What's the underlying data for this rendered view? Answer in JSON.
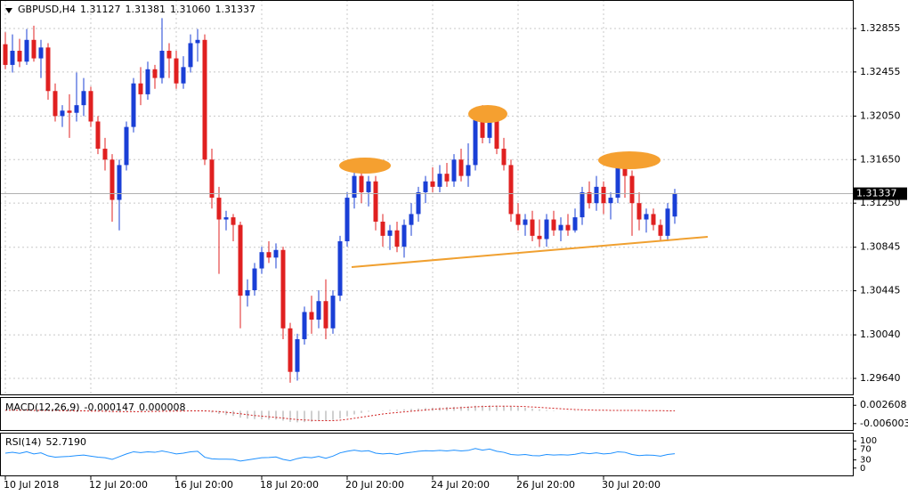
{
  "chart_data": {
    "type": "candlestick",
    "title": "GBPUSD,H4",
    "last_bar_labels": [
      "1.31127",
      "1.31381",
      "1.31060",
      "1.31337"
    ],
    "open": [
      1.3271,
      1.3252,
      1.3265,
      1.3255,
      1.3275,
      1.3258,
      1.3268,
      1.3228,
      1.3205,
      1.321,
      1.3208,
      1.3215,
      1.3228,
      1.32,
      1.3175,
      1.3165,
      1.3128,
      1.316,
      1.3195,
      1.3235,
      1.3225,
      1.3248,
      1.324,
      1.3265,
      1.3258,
      1.3235,
      1.325,
      1.3272,
      1.3275,
      1.3165,
      1.313,
      1.311,
      1.3112,
      1.3105,
      1.304,
      1.3045,
      1.3065,
      1.308,
      1.3075,
      1.3082,
      1.301,
      1.297,
      1.3,
      1.3025,
      1.3018,
      1.3035,
      1.301,
      1.304,
      1.309,
      1.313,
      1.315,
      1.3135,
      1.3145,
      1.3108,
      1.3095,
      1.31,
      1.3085,
      1.3105,
      1.3115,
      1.3135,
      1.3145,
      1.314,
      1.3152,
      1.3145,
      1.3165,
      1.315,
      1.316,
      1.3205,
      1.3185,
      1.3205,
      1.3175,
      1.316,
      1.3115,
      1.3105,
      1.311,
      1.3095,
      1.3092,
      1.311,
      1.31,
      1.3105,
      1.31,
      1.3112,
      1.3135,
      1.3125,
      1.314,
      1.3125,
      1.313,
      1.3158,
      1.315,
      1.3125,
      1.311,
      1.3115,
      1.3105,
      1.3095,
      1.31127
    ],
    "high": [
      1.3282,
      1.328,
      1.3276,
      1.3285,
      1.3288,
      1.3275,
      1.3272,
      1.3235,
      1.3215,
      1.3225,
      1.3245,
      1.324,
      1.3232,
      1.3205,
      1.3185,
      1.317,
      1.3165,
      1.32,
      1.324,
      1.325,
      1.3255,
      1.3252,
      1.3295,
      1.3272,
      1.3265,
      1.326,
      1.328,
      1.3285,
      1.328,
      1.3175,
      1.314,
      1.3118,
      1.3115,
      1.3108,
      1.3055,
      1.307,
      1.3085,
      1.309,
      1.3088,
      1.3085,
      1.3015,
      1.3005,
      1.303,
      1.304,
      1.3045,
      1.3055,
      1.3045,
      1.3095,
      1.3135,
      1.316,
      1.3158,
      1.315,
      1.315,
      1.3115,
      1.3105,
      1.3108,
      1.311,
      1.3125,
      1.314,
      1.315,
      1.3158,
      1.316,
      1.3162,
      1.317,
      1.3175,
      1.318,
      1.321,
      1.3215,
      1.3212,
      1.321,
      1.3185,
      1.3165,
      1.3125,
      1.3115,
      1.3118,
      1.311,
      1.3115,
      1.3118,
      1.3112,
      1.3115,
      1.312,
      1.314,
      1.3145,
      1.315,
      1.3145,
      1.3135,
      1.3168,
      1.3172,
      1.3155,
      1.3135,
      1.312,
      1.312,
      1.311,
      1.3125,
      1.31381
    ],
    "low": [
      1.3248,
      1.3245,
      1.325,
      1.3252,
      1.3255,
      1.324,
      1.322,
      1.32,
      1.3195,
      1.3185,
      1.32,
      1.3205,
      1.3195,
      1.317,
      1.3155,
      1.3108,
      1.31,
      1.3155,
      1.319,
      1.3215,
      1.322,
      1.323,
      1.3235,
      1.324,
      1.323,
      1.323,
      1.3245,
      1.3255,
      1.316,
      1.312,
      1.306,
      1.31,
      1.309,
      1.301,
      1.303,
      1.304,
      1.306,
      1.307,
      1.3065,
      1.3,
      1.296,
      1.2962,
      1.2995,
      1.3005,
      1.301,
      1.3,
      1.3005,
      1.3035,
      1.3085,
      1.312,
      1.3125,
      1.3122,
      1.31,
      1.3085,
      1.3082,
      1.308,
      1.3075,
      1.3095,
      1.3108,
      1.3125,
      1.3135,
      1.3135,
      1.314,
      1.314,
      1.3145,
      1.314,
      1.3155,
      1.318,
      1.318,
      1.317,
      1.3155,
      1.3108,
      1.31,
      1.3095,
      1.309,
      1.3085,
      1.3085,
      1.3095,
      1.309,
      1.3095,
      1.3098,
      1.3105,
      1.312,
      1.3118,
      1.3115,
      1.311,
      1.3125,
      1.313,
      1.3095,
      1.31,
      1.3098,
      1.31,
      1.309,
      1.309,
      1.3106
    ],
    "close": [
      1.3252,
      1.3265,
      1.3255,
      1.3275,
      1.3258,
      1.3268,
      1.3228,
      1.3205,
      1.321,
      1.3208,
      1.3215,
      1.3228,
      1.32,
      1.3175,
      1.3165,
      1.3128,
      1.316,
      1.3195,
      1.3235,
      1.3225,
      1.3248,
      1.324,
      1.3265,
      1.3258,
      1.3235,
      1.325,
      1.3272,
      1.3275,
      1.3165,
      1.313,
      1.311,
      1.3112,
      1.3105,
      1.304,
      1.3045,
      1.3065,
      1.308,
      1.3075,
      1.3082,
      1.301,
      1.297,
      1.3,
      1.3025,
      1.3018,
      1.3035,
      1.301,
      1.304,
      1.309,
      1.313,
      1.315,
      1.3135,
      1.3145,
      1.3108,
      1.3095,
      1.31,
      1.3085,
      1.3105,
      1.3115,
      1.3135,
      1.3145,
      1.314,
      1.3152,
      1.3145,
      1.3165,
      1.315,
      1.316,
      1.3205,
      1.3185,
      1.3205,
      1.3175,
      1.316,
      1.3115,
      1.3105,
      1.311,
      1.3095,
      1.3092,
      1.311,
      1.31,
      1.3105,
      1.31,
      1.3112,
      1.3135,
      1.3125,
      1.314,
      1.3125,
      1.313,
      1.3158,
      1.315,
      1.3125,
      1.311,
      1.3115,
      1.3105,
      1.3095,
      1.312,
      1.31337
    ],
    "up_color": "#1a3fd6",
    "down_color": "#e02020",
    "ylim": [
      1.29493,
      1.331
    ],
    "yticks": [
      1.32855,
      1.32455,
      {
        "value": 1.3205,
        "label": "1.32050"
      },
      {
        "value": 1.3165,
        "label": "1.31650"
      },
      {
        "value": 1.3125,
        "label": "1.31250"
      },
      1.30845,
      1.30445,
      {
        "value": 1.3004,
        "label": "1.30040"
      },
      {
        "value": 1.2964,
        "label": "1.29640"
      }
    ],
    "xticks": [
      {
        "value": 0,
        "label": "10 Jul 2018"
      },
      {
        "value": 12,
        "label": "12 Jul 20:00"
      },
      {
        "value": 24,
        "label": "16 Jul 20:00"
      },
      {
        "value": 36,
        "label": "18 Jul 20:00"
      },
      {
        "value": 48,
        "label": "20 Jul 20:00"
      },
      {
        "value": 60,
        "label": "24 Jul 20:00"
      },
      {
        "value": 72,
        "label": "26 Jul 20:00"
      },
      {
        "value": 84,
        "label": "30 Jul 20:00"
      }
    ],
    "grid": true,
    "macd": {
      "name": "MACD(12,26,9)",
      "values": [
        0.0003,
        0.0003,
        0.0002,
        0.0002,
        0.0002,
        0.0002,
        0.0001,
        0.0,
        -0.0001,
        -0.0002,
        -0.0002,
        -0.0002,
        -0.0003,
        -0.0004,
        -0.0005,
        -0.0007,
        -0.0007,
        -0.0005,
        -0.0003,
        -0.0002,
        -0.0001,
        -0.0001,
        0.0001,
        0.0001,
        0.0001,
        0.0001,
        0.0002,
        0.0002,
        -0.0003,
        -0.0008,
        -0.0015,
        -0.002,
        -0.0024,
        -0.0032,
        -0.0037,
        -0.0039,
        -0.004,
        -0.0041,
        -0.0041,
        -0.0046,
        -0.0052,
        -0.0054,
        -0.0053,
        -0.0051,
        -0.0048,
        -0.0047,
        -0.0043,
        -0.0036,
        -0.0026,
        -0.0017,
        -0.001,
        -0.0004,
        0.0,
        0.0002,
        0.0004,
        0.0005,
        0.0007,
        0.0009,
        0.0011,
        0.0013,
        0.0015,
        0.0016,
        0.0018,
        0.0019,
        0.002,
        0.0021,
        0.0024,
        0.0025,
        0.0026,
        0.0025,
        0.0024,
        0.0022,
        0.0018,
        0.0014,
        0.001,
        0.0007,
        0.0004,
        0.0002,
        0.0,
        -0.0001,
        -0.0002,
        -0.0001,
        0.0,
        0.0001,
        0.0002,
        0.0002,
        0.0003,
        0.0004,
        0.0003,
        0.0002,
        0.0001,
        0.0,
        -0.0001,
        -0.0002,
        -0.000147
      ],
      "signal": [
        0.0003,
        0.0003,
        0.0003,
        0.0003,
        0.0002,
        0.0002,
        0.0002,
        0.0002,
        0.0001,
        0.0001,
        0.0,
        0.0,
        -0.0001,
        -0.0001,
        -0.0002,
        -0.0003,
        -0.0004,
        -0.0004,
        -0.0004,
        -0.0004,
        -0.0003,
        -0.0003,
        -0.0002,
        -0.0002,
        -0.0001,
        -0.0001,
        0.0,
        0.0,
        0.0,
        -0.0002,
        -0.0004,
        -0.0007,
        -0.001,
        -0.0014,
        -0.0018,
        -0.0022,
        -0.0025,
        -0.0028,
        -0.0031,
        -0.0034,
        -0.0038,
        -0.0041,
        -0.0043,
        -0.0045,
        -0.0046,
        -0.0046,
        -0.0046,
        -0.0044,
        -0.004,
        -0.0035,
        -0.003,
        -0.0025,
        -0.002,
        -0.0015,
        -0.0011,
        -0.0008,
        -0.0005,
        -0.0002,
        0.0001,
        0.0004,
        0.0007,
        0.0009,
        0.0011,
        0.0013,
        0.0015,
        0.0017,
        0.0019,
        0.002,
        0.0021,
        0.0022,
        0.0022,
        0.0022,
        0.0021,
        0.002,
        0.0018,
        0.0016,
        0.0014,
        0.0012,
        0.001,
        0.0008,
        0.0006,
        0.0005,
        0.0004,
        0.0003,
        0.0003,
        0.0002,
        0.0002,
        0.0002,
        0.0002,
        0.0002,
        0.0001,
        0.0001,
        0.0001,
        0.0,
        8e-06
      ],
      "ylim": [
        -0.00902,
        0.00605
      ],
      "yticks": [
        0.002608,
        -0.006003
      ],
      "color": "#c0c0c0",
      "signal_color": "#d02020"
    },
    "rsi": {
      "name": "RSI(14)",
      "values": [
        55,
        58,
        54,
        60,
        52,
        56,
        45,
        40,
        42,
        43,
        46,
        48,
        44,
        40,
        38,
        32,
        42,
        52,
        60,
        57,
        60,
        58,
        63,
        58,
        52,
        55,
        60,
        62,
        40,
        34,
        33,
        33,
        32,
        26,
        30,
        34,
        38,
        39,
        41,
        32,
        27,
        35,
        40,
        38,
        43,
        36,
        44,
        56,
        62,
        66,
        62,
        64,
        55,
        52,
        54,
        50,
        55,
        58,
        62,
        64,
        63,
        65,
        63,
        66,
        63,
        65,
        72,
        66,
        70,
        62,
        58,
        50,
        48,
        50,
        46,
        45,
        50,
        48,
        49,
        48,
        51,
        56,
        53,
        56,
        52,
        54,
        60,
        58,
        50,
        46,
        48,
        47,
        44,
        50,
        52.719
      ],
      "last_label": "52.7190",
      "ylim": [
        -27,
        127
      ],
      "yticks": [
        100,
        70,
        30,
        0
      ],
      "color": "#1e90ff"
    }
  }
}
